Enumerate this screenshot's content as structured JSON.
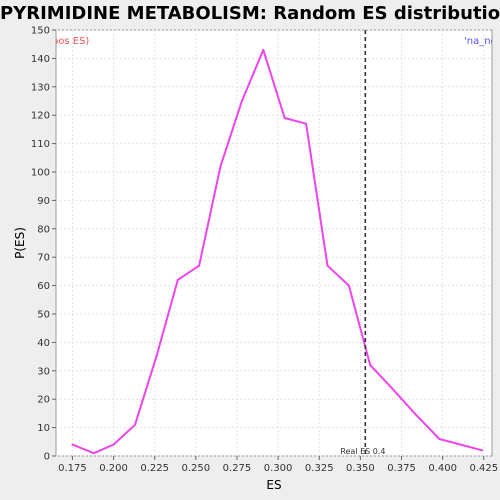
{
  "chart_data": {
    "type": "line",
    "title": "PYRIMIDINE METABOLISM: Random ES distribution",
    "xlabel": "ES",
    "ylabel": "P(ES)",
    "xlim": [
      0.165,
      0.43
    ],
    "ylim": [
      0,
      150
    ],
    "x_ticks": [
      "0.175",
      "0.200",
      "0.225",
      "0.250",
      "0.275",
      "0.300",
      "0.325",
      "0.350",
      "0.375",
      "0.400",
      "0.425"
    ],
    "y_ticks": [
      "0",
      "10",
      "20",
      "30",
      "40",
      "50",
      "60",
      "70",
      "80",
      "90",
      "100",
      "110",
      "120",
      "130",
      "140",
      "150"
    ],
    "grid": true,
    "series": [
      {
        "color": "#ee44ee",
        "x": [
          0.175,
          0.188,
          0.2,
          0.213,
          0.226,
          0.239,
          0.252,
          0.265,
          0.278,
          0.291,
          0.304,
          0.317,
          0.33,
          0.343,
          0.356,
          0.369,
          0.383,
          0.398,
          0.411,
          0.424
        ],
        "y": [
          4,
          1,
          4,
          11,
          35,
          62,
          67,
          102,
          125,
          143,
          119,
          117,
          67,
          60,
          32,
          24,
          15,
          6,
          4,
          2
        ]
      }
    ],
    "annotations": {
      "real_es_value": 0.353,
      "real_es_label": "Real ES 0.4",
      "left_corner_label": "(pos ES)",
      "right_corner_label": "'na_neg",
      "left_corner_color": "#ee5555",
      "right_corner_color": "#5555ee"
    }
  }
}
